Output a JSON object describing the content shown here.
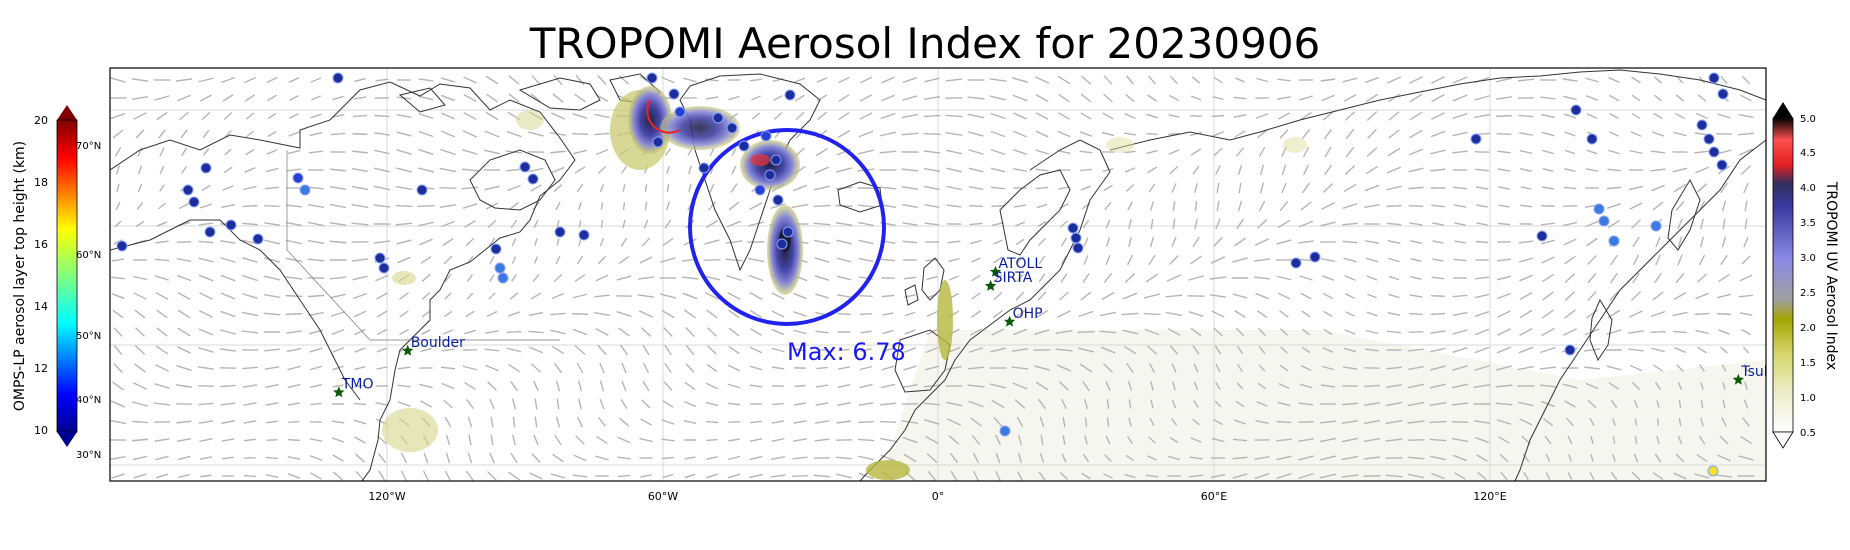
{
  "title": "TROPOMI Aerosol Index for 20230906",
  "max_label": "Max: 6.78",
  "left_colorbar": {
    "label": "OMPS-LP aerosol layer top height (km)",
    "ticks": [
      "20",
      "18",
      "16",
      "14",
      "12",
      "10"
    ],
    "lat_labels": [
      "70°N",
      "60°N",
      "50°N",
      "40°N",
      "30°N"
    ]
  },
  "right_colorbar": {
    "label": "TROPOMI UV Aerosol Index",
    "ticks": [
      "5.0",
      "4.5",
      "4.0",
      "3.5",
      "3.0",
      "2.5",
      "2.0",
      "1.5",
      "1.0",
      "0.5"
    ]
  },
  "lon_ticks": [
    "120°W",
    "60°W",
    "0°",
    "60°E",
    "120°E"
  ],
  "sites": [
    {
      "name": "TMO",
      "lon": -118,
      "lat": 34.4
    },
    {
      "name": "Boulder",
      "lon": -105.3,
      "lat": 40.0
    },
    {
      "name": "ATOLL",
      "lon": 3.1,
      "lat": 50.6
    },
    {
      "name": "SIRTA",
      "lon": 2.2,
      "lat": 48.7
    },
    {
      "name": "OHP",
      "lon": 5.7,
      "lat": 43.9
    },
    {
      "name": "Tsukuba",
      "lon": 140.1,
      "lat": 36.1
    }
  ],
  "colors": {
    "circle": "#2222ee",
    "site_marker": "#0a5a0a",
    "max_label": "#1a1af0"
  }
}
